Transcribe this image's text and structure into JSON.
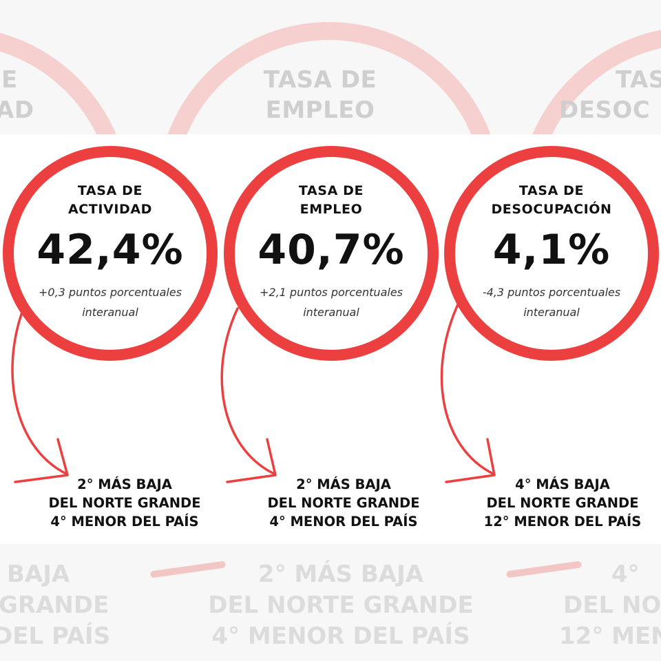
{
  "indicators": [
    {
      "label_line1": "TASA DE",
      "label_line2": "ACTIVIDAD",
      "value": "42,4%",
      "note_line1": "+0,3 puntos porcentuales",
      "note_line2": "interanual",
      "rank_line1": "2° MÁS BAJA",
      "rank_line2": "DEL NORTE GRANDE",
      "rank_line3": "4° MENOR DEL PAÍS"
    },
    {
      "label_line1": "TASA DE",
      "label_line2": "EMPLEO",
      "value": "40,7%",
      "note_line1": "+2,1 puntos porcentuales",
      "note_line2": "interanual",
      "rank_line1": "2° MÁS BAJA",
      "rank_line2": "DEL NORTE GRANDE",
      "rank_line3": "4° MENOR DEL PAÍS"
    },
    {
      "label_line1": "TASA DE",
      "label_line2": "DESOCUPACIÓN",
      "value": "4,1%",
      "note_line1": "-4,3 puntos porcentuales",
      "note_line2": "interanual",
      "rank_line1": "4° MÁS BAJA",
      "rank_line2": "DEL NORTE GRANDE",
      "rank_line3": "12° MENOR DEL PAÍS"
    }
  ],
  "background": {
    "top_left_line1": "E",
    "top_left_line2": "AD",
    "top_mid_line1": "TASA DE",
    "top_mid_line2": "EMPLEO",
    "top_right_line1": "TAS",
    "top_right_line2": "DESOC",
    "bottom_left_line1": "BAJA",
    "bottom_left_line2": "GRANDE",
    "bottom_left_line3": "DEL PAÍS",
    "bottom_mid_line1": "2° MÁS BAJA",
    "bottom_mid_line2": "DEL NORTE GRANDE",
    "bottom_mid_line3": "4° MENOR DEL PAÍS",
    "bottom_right_line1": "4°",
    "bottom_right_line2": "DEL NO",
    "bottom_right_line3": "12° MEN"
  },
  "colors": {
    "ring": "#ec3f3f",
    "faded_ring": "#f6cfcf",
    "text": "#111111",
    "faded_text": "#cfcfcf"
  }
}
